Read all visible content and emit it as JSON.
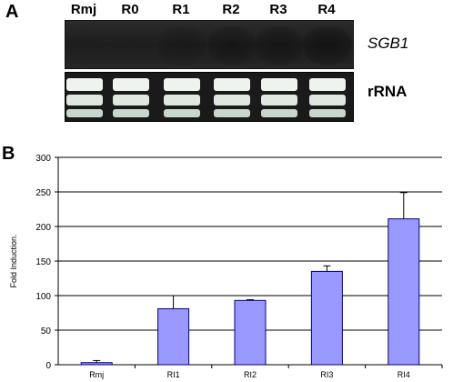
{
  "panelA": {
    "letter": "A",
    "lanes": [
      "Rmj",
      "R0",
      "R1",
      "R2",
      "R3",
      "R4"
    ],
    "band_intensity": [
      0.04,
      0.03,
      0.18,
      0.28,
      0.3,
      0.38
    ],
    "blot_label": "SGB1",
    "rrna_label": "rRNA"
  },
  "panelB": {
    "letter": "B"
  },
  "chart_data": {
    "type": "bar",
    "categories": [
      "Rmj",
      "RI1",
      "RI2",
      "RI3",
      "RI4"
    ],
    "values": [
      3,
      81,
      93,
      135,
      211
    ],
    "error": [
      3,
      19,
      1,
      8,
      38
    ],
    "ylabel": "Fold Induction.",
    "xlabel": "",
    "ylim": [
      0,
      300
    ],
    "yticks": [
      0,
      50,
      100,
      150,
      200,
      250,
      300
    ],
    "grid": true,
    "bar_color": "#9999ff",
    "bar_edge_color": "#000080"
  }
}
